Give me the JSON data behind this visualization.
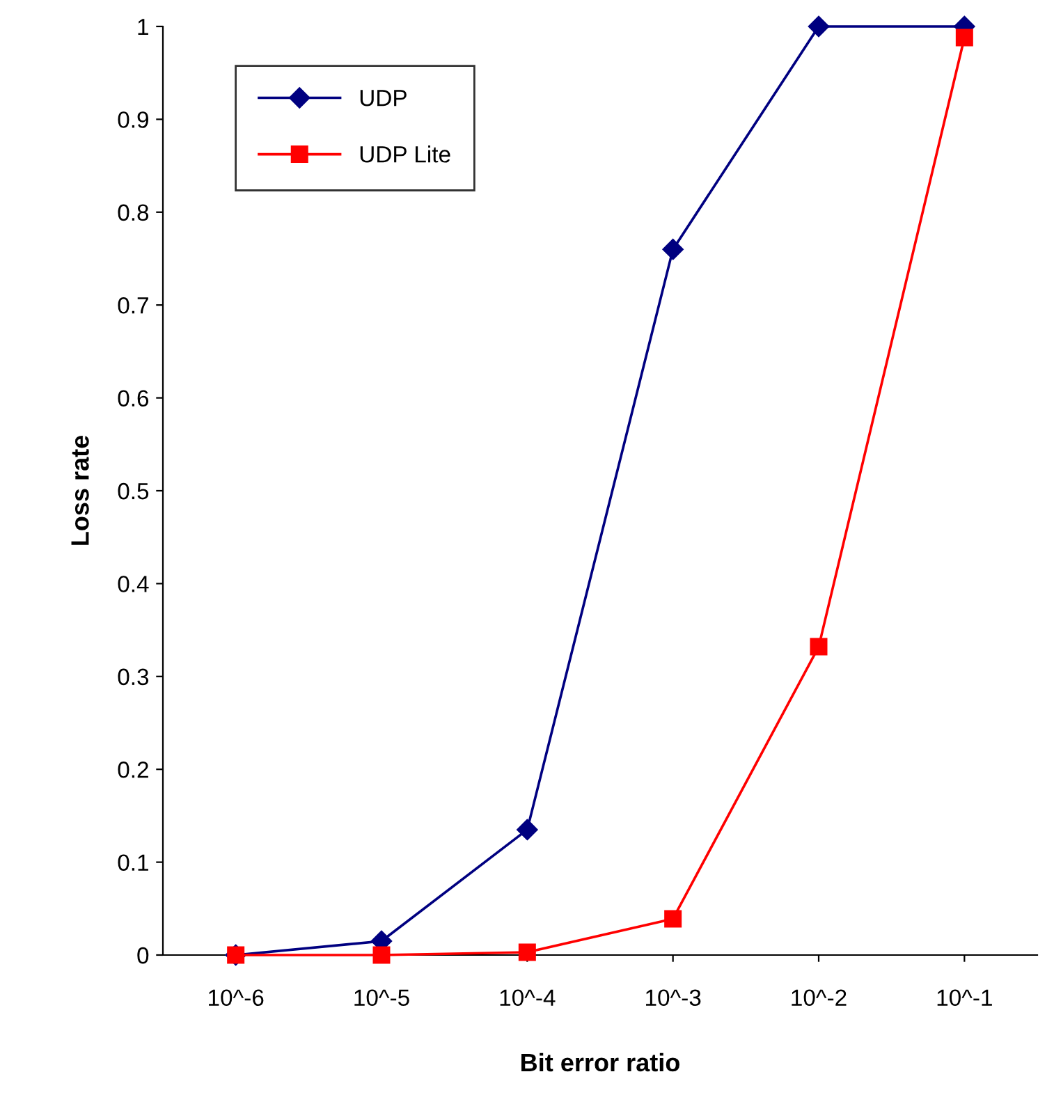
{
  "chart_data": {
    "type": "line",
    "xlabel": "Bit error ratio",
    "ylabel": "Loss rate",
    "categories": [
      "10^-6",
      "10^-5",
      "10^-4",
      "10^-3",
      "10^-2",
      "10^-1"
    ],
    "series": [
      {
        "name": "UDP",
        "color": "#000080",
        "marker": "diamond",
        "values": [
          0,
          0.015,
          0.135,
          0.76,
          1.0,
          1.0
        ]
      },
      {
        "name": "UDP Lite",
        "color": "#ff0000",
        "marker": "square",
        "values": [
          0,
          0,
          0.003,
          0.039,
          0.332,
          0.988
        ]
      }
    ],
    "ylim": [
      0,
      1
    ],
    "yticks": [
      0,
      0.1,
      0.2,
      0.3,
      0.4,
      0.5,
      0.6,
      0.7,
      0.8,
      0.9,
      1
    ],
    "grid": false,
    "legend": "top left",
    "line_style": "solid"
  }
}
